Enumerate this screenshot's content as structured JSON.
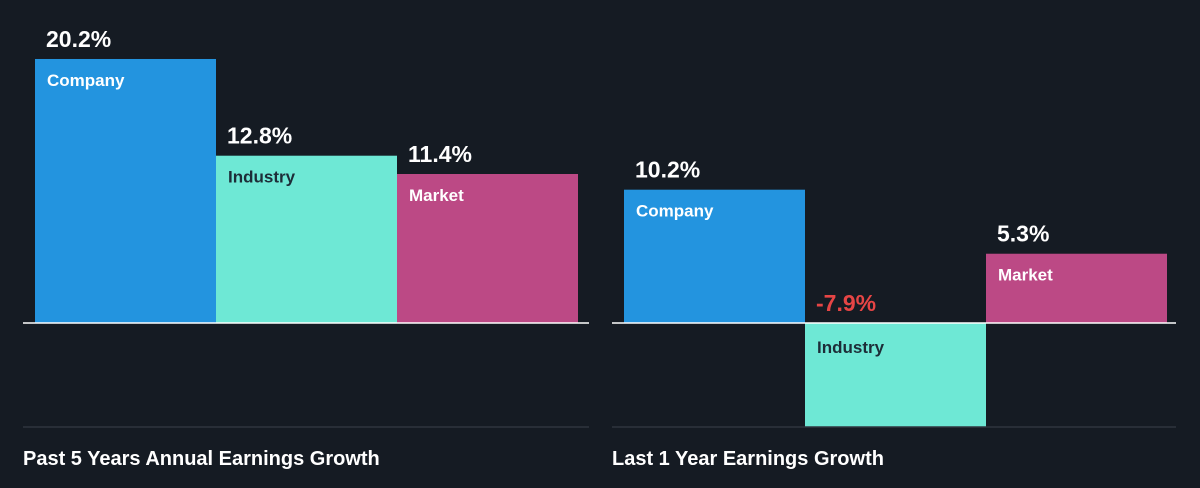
{
  "chart_data": [
    {
      "type": "bar",
      "title": "Past 5 Years Annual Earnings Growth",
      "categories": [
        "Company",
        "Industry",
        "Market"
      ],
      "values": [
        20.2,
        12.8,
        11.4
      ],
      "value_labels": [
        "20.2%",
        "12.8%",
        "11.4%"
      ],
      "unit": "%",
      "colors": [
        "#2394df",
        "#6ee8d5",
        "#bc4985"
      ],
      "label_colors": [
        "#ffffff",
        "#1d2d38",
        "#ffffff"
      ]
    },
    {
      "type": "bar",
      "title": "Last 1 Year Earnings Growth",
      "categories": [
        "Company",
        "Industry",
        "Market"
      ],
      "values": [
        10.2,
        -7.9,
        5.3
      ],
      "value_labels": [
        "10.2%",
        "-7.9%",
        "5.3%"
      ],
      "unit": "%",
      "colors": [
        "#2394df",
        "#6ee8d5",
        "#bc4985"
      ],
      "label_colors": [
        "#ffffff",
        "#1d2d38",
        "#ffffff"
      ],
      "negative_value_color": "#e64545"
    }
  ],
  "theme": {
    "background": "#151b23",
    "text": "#ffffff",
    "axis": "#ffffff",
    "divider": "#3a414b"
  }
}
